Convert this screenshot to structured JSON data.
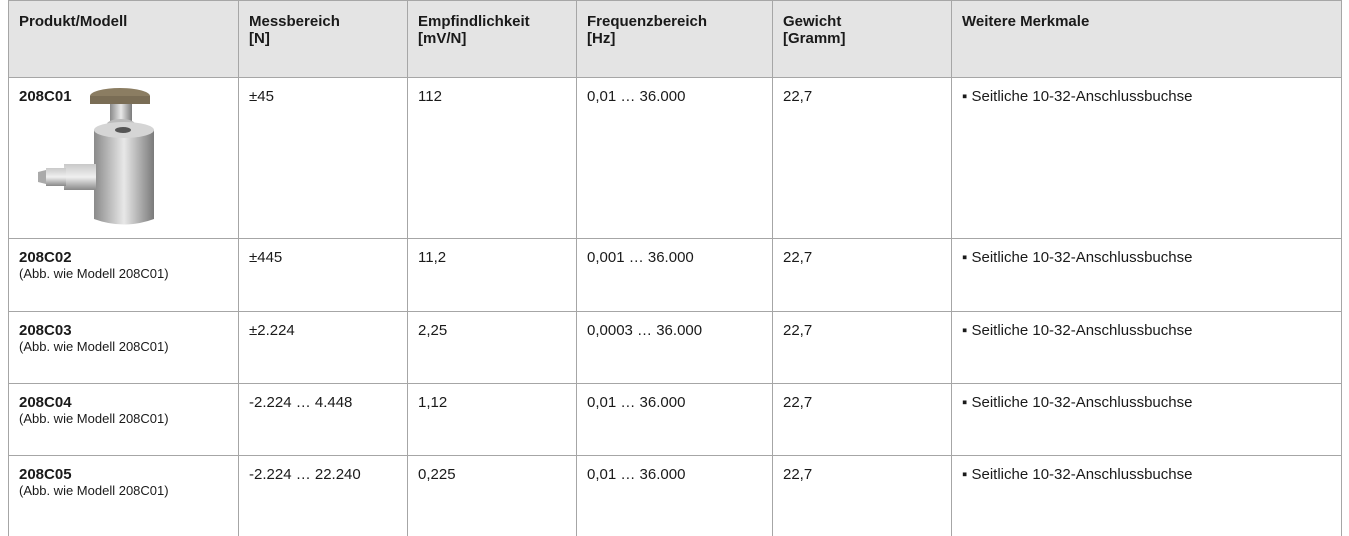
{
  "table": {
    "header": [
      [
        "Produkt/Modell"
      ],
      [
        "Messbereich",
        "[N]"
      ],
      [
        "Empfindlichkeit",
        "[mV/N]"
      ],
      [
        "Frequenzbereich",
        "[Hz]"
      ],
      [
        "Gewicht",
        "[Gramm]"
      ],
      [
        "Weitere Merkmale"
      ]
    ],
    "rows": [
      {
        "model": "208C01",
        "cells": [
          "±45",
          "112",
          "0,01 … 36.000",
          "22,7",
          "▪ Seitliche 10-32-Anschlussbuchse"
        ]
      },
      {
        "model": "208C02",
        "note": "(Abb. wie Modell 208C01)",
        "cells": [
          "±445",
          "11,2",
          "0,001 … 36.000",
          "22,7",
          "▪ Seitliche 10-32-Anschlussbuchse"
        ]
      },
      {
        "model": "208C03",
        "note": "(Abb. wie Modell 208C01)",
        "cells": [
          "±2.224",
          "2,25",
          "0,0003 … 36.000",
          "22,7",
          "▪ Seitliche 10-32-Anschlussbuchse"
        ]
      },
      {
        "model": "208C04",
        "note": "(Abb. wie Modell 208C01)",
        "cells": [
          "-2.224 … 4.448",
          "1,12",
          "0,01 … 36.000",
          "22,7",
          "▪ Seitliche 10-32-Anschlussbuchse"
        ]
      },
      {
        "model": "208C05",
        "note": "(Abb. wie Modell 208C01)",
        "cells": [
          "-2.224 … 22.240",
          "0,225",
          "0,01 … 36.000",
          "22,7",
          "▪ Seitliche 10-32-Anschlussbuchse"
        ]
      }
    ]
  }
}
